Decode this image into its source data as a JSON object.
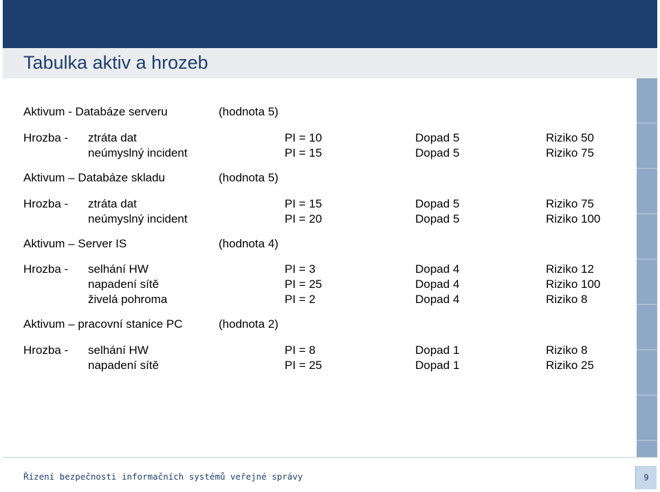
{
  "title": "Tabulka aktiv a hrozeb",
  "footer": {
    "text": "Řízení bezpečnosti informačních systémů veřejné správy",
    "page_number": "9"
  },
  "sections": [
    {
      "asset_label": "Aktivum - Databáze serveru",
      "value": "(hodnota 5)",
      "threat_label": "Hrozba -",
      "threats": [
        {
          "name": "ztráta dat",
          "pi": "PI = 10",
          "impact": "Dopad 5",
          "risk": "Riziko 50"
        },
        {
          "name": "neúmyslný incident",
          "pi": "PI = 15",
          "impact": "Dopad 5",
          "risk": "Riziko 75"
        }
      ]
    },
    {
      "asset_label": "Aktivum – Databáze skladu",
      "value": "(hodnota 5)",
      "threat_label": "Hrozba -",
      "threats": [
        {
          "name": "ztráta dat",
          "pi": "PI = 15",
          "impact": "Dopad 5",
          "risk": "Riziko 75"
        },
        {
          "name": "neúmyslný incident",
          "pi": "PI = 20",
          "impact": "Dopad 5",
          "risk": "Riziko 100"
        }
      ]
    },
    {
      "asset_label": "Aktivum – Server IS",
      "value": "(hodnota 4)",
      "threat_label": "Hrozba -",
      "threats": [
        {
          "name": "selhání HW",
          "pi": "PI = 3",
          "impact": "Dopad 4",
          "risk": "Riziko 12"
        },
        {
          "name": "napadení sítě",
          "pi": "PI = 25",
          "impact": "Dopad 4",
          "risk": "Riziko 100"
        },
        {
          "name": "živelá pohroma",
          "pi": "PI = 2",
          "impact": "Dopad 4",
          "risk": "Riziko 8"
        }
      ]
    },
    {
      "asset_label": "Aktivum – pracovní stanice PC",
      "value": "(hodnota 2)",
      "threat_label": "Hrozba -",
      "threats": [
        {
          "name": "selhání HW",
          "pi": "PI = 8",
          "impact": "Dopad 1",
          "risk": "Riziko 8"
        },
        {
          "name": "napadení sítě",
          "pi": "PI = 25",
          "impact": "Dopad 1",
          "risk": "Riziko 25"
        }
      ]
    }
  ]
}
